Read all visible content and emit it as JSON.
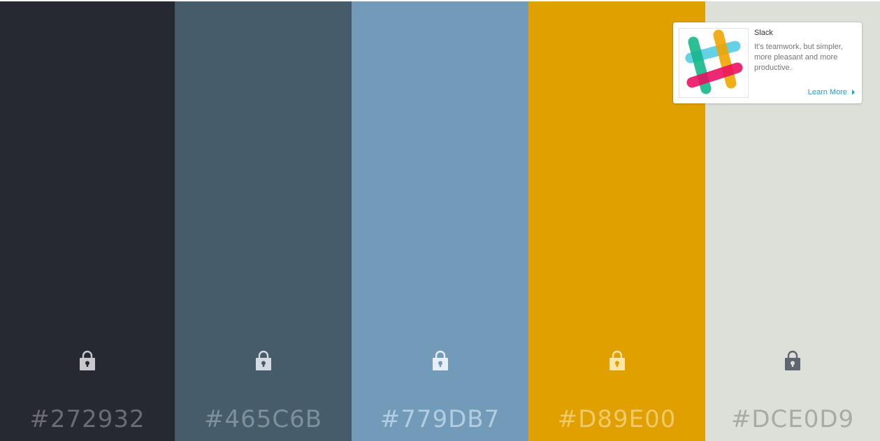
{
  "palette": {
    "swatches": [
      {
        "hex": "#272932",
        "bg": "#272932",
        "label_color": "#6b6c73",
        "lock_color": "#c9c9cd",
        "lock_hole": "#272932"
      },
      {
        "hex": "#465C6B",
        "bg": "#465C6B",
        "label_color": "#7d909c",
        "lock_color": "#d4dbe0",
        "lock_hole": "#465C6B"
      },
      {
        "hex": "#779DB7",
        "bg": "#719BB9",
        "label_color": "#b3cde0",
        "lock_color": "#e6eff6",
        "lock_hole": "#719BB9"
      },
      {
        "hex": "#D89E00",
        "bg": "#DFA000",
        "label_color": "#f1c968",
        "lock_color": "#fde6a8",
        "lock_hole": "#DFA000"
      },
      {
        "hex": "#DCE0D9",
        "bg": "#DCE0D9",
        "label_color": "#a7aba5",
        "lock_color": "#5f6670",
        "lock_hole": "#DCE0D9"
      }
    ]
  },
  "ad": {
    "title": "Slack",
    "description": "It's teamwork, but simpler, more pleasant and more productive.",
    "cta": "Learn More",
    "logo_icon": "slack-logo-icon",
    "accent": "#1ea2d8"
  }
}
